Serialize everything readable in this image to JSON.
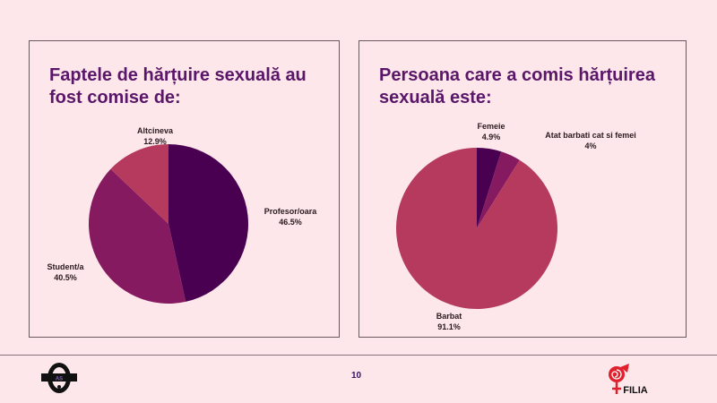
{
  "chart_data": [
    {
      "type": "pie",
      "title": "Faptele de hărțuire sexuală au fost comise de:",
      "slices": [
        {
          "label": "Profesor/oara",
          "value": 46.5,
          "display": "46.5%",
          "color": "#4a0050"
        },
        {
          "label": "Student/a",
          "value": 40.5,
          "display": "40.5%",
          "color": "#861a60"
        },
        {
          "label": "Altcineva",
          "value": 12.9,
          "display": "12.9%",
          "color": "#b53a5e"
        }
      ]
    },
    {
      "type": "pie",
      "title": "Persoana care a comis hărțuirea sexuală este:",
      "slices": [
        {
          "label": "Femeie",
          "value": 4.9,
          "display": "4.9%",
          "color": "#4a0050"
        },
        {
          "label": "Atat barbati cat si femei",
          "value": 4,
          "display": "4%",
          "color": "#861a60"
        },
        {
          "label": "Barbat",
          "value": 91.1,
          "display": "91.1%",
          "color": "#b53a5e"
        }
      ]
    }
  ],
  "footer": {
    "page_number": "10",
    "left_logo_text": "AS",
    "right_logo_text": "FILIA"
  }
}
